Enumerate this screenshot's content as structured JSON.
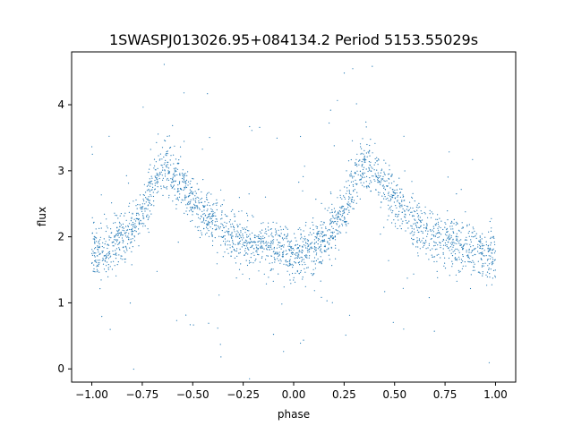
{
  "chart_data": {
    "type": "scatter",
    "title": "1SWASPJ013026.95+084134.2 Period 5153.55029s",
    "xlabel": "phase",
    "ylabel": "flux",
    "xlim": [
      -1.1,
      1.1
    ],
    "ylim": [
      -0.2,
      4.8
    ],
    "xticks": [
      -1.0,
      -0.75,
      -0.5,
      -0.25,
      0.0,
      0.25,
      0.5,
      0.75,
      1.0
    ],
    "xtick_labels": [
      "−1.00",
      "−0.75",
      "−0.50",
      "−0.25",
      "0.00",
      "0.25",
      "0.50",
      "0.75",
      "1.00"
    ],
    "yticks": [
      0,
      1,
      2,
      3,
      4
    ],
    "ytick_labels": [
      "0",
      "1",
      "2",
      "3",
      "4"
    ],
    "grid": false,
    "legend": "none",
    "marker_color": "#1f77b4",
    "series": [
      {
        "phase_range": [
          -1.0,
          1.0
        ],
        "profile_phase": [
          0.0,
          0.05,
          0.1,
          0.15,
          0.2,
          0.25,
          0.28,
          0.31,
          0.34,
          0.37,
          0.4,
          0.45,
          0.5,
          0.55,
          0.6,
          0.65,
          0.7,
          0.75,
          0.8,
          0.85,
          0.9,
          0.95,
          1.0
        ],
        "profile_flux": [
          1.75,
          1.77,
          1.83,
          1.98,
          2.12,
          2.35,
          2.65,
          2.9,
          3.03,
          3.05,
          2.95,
          2.78,
          2.55,
          2.38,
          2.22,
          2.1,
          2.0,
          1.95,
          1.9,
          1.86,
          1.82,
          1.78,
          1.75
        ],
        "scatter_sigma": 0.2
      }
    ]
  }
}
